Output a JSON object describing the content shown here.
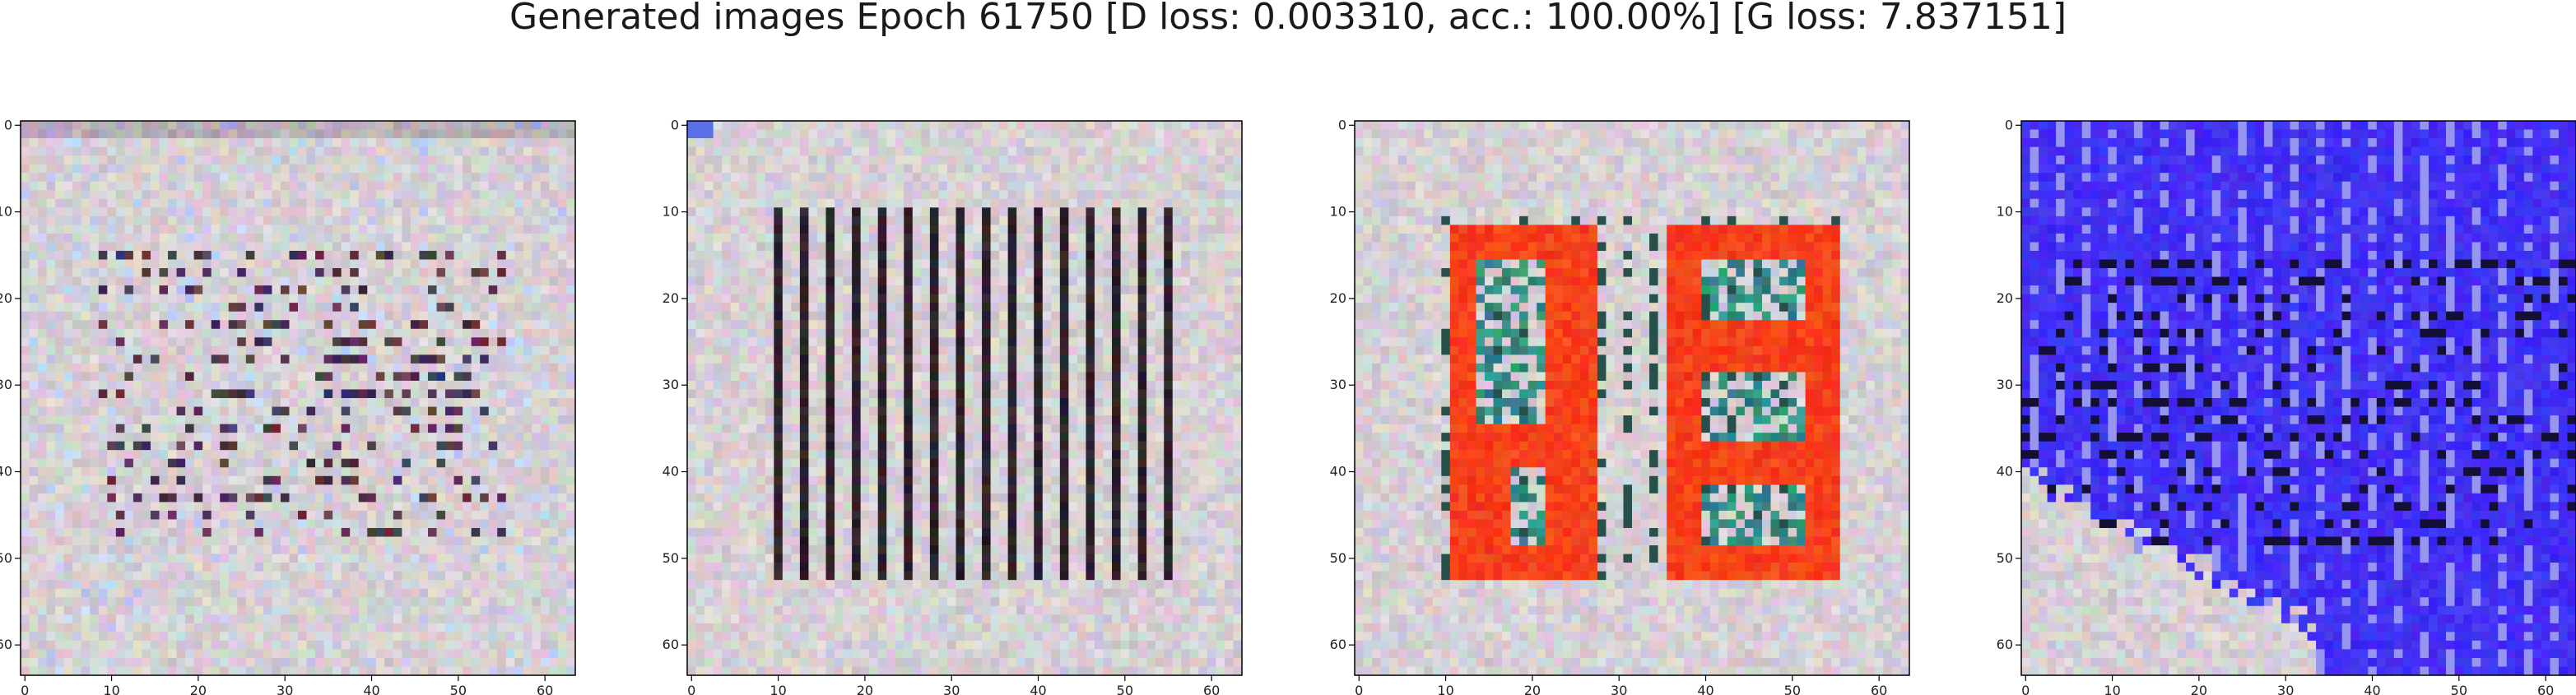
{
  "figure": {
    "title": "Generated images Epoch 61750 [D loss: 0.003310, acc.: 100.00%] [G loss: 7.837151]"
  },
  "chart_data": [
    {
      "type": "heatmap",
      "title": "",
      "xlabel": "",
      "ylabel": "",
      "xlim": [
        0,
        63
      ],
      "ylim": [
        63,
        0
      ],
      "xticks": [
        0,
        10,
        20,
        30,
        40,
        50,
        60
      ],
      "yticks": [
        0,
        10,
        20,
        30,
        40,
        50,
        60
      ],
      "content": "light-noise",
      "dominant_colors": [
        "#d7d1d4",
        "#e9e6ec",
        "#3a1f2a"
      ]
    },
    {
      "type": "heatmap",
      "title": "",
      "xlabel": "",
      "ylabel": "",
      "xlim": [
        0,
        63
      ],
      "ylim": [
        63,
        0
      ],
      "xticks": [
        0,
        10,
        20,
        30,
        40,
        50,
        60
      ],
      "yticks": [
        0,
        10,
        20,
        30,
        40,
        50,
        60
      ],
      "content": "vertical-bars",
      "dominant_colors": [
        "#d9d6d8",
        "#1b1418",
        "#ede9ee"
      ]
    },
    {
      "type": "heatmap",
      "title": "",
      "xlabel": "",
      "ylabel": "",
      "xlim": [
        0,
        63
      ],
      "ylim": [
        63,
        0
      ],
      "xticks": [
        0,
        10,
        20,
        30,
        40,
        50,
        60
      ],
      "yticks": [
        0,
        10,
        20,
        30,
        40,
        50,
        60
      ],
      "content": "red-digits",
      "dominant_colors": [
        "#d8d3d6",
        "#f23012",
        "#1f6f66"
      ]
    },
    {
      "type": "heatmap",
      "title": "",
      "xlabel": "",
      "ylabel": "",
      "xlim": [
        0,
        63
      ],
      "ylim": [
        63,
        0
      ],
      "xticks": [
        0,
        10,
        20,
        30,
        40,
        50,
        60
      ],
      "yticks": [
        0,
        10,
        20,
        30,
        40,
        50,
        60
      ],
      "content": "blue-field",
      "dominant_colors": [
        "#3a1ff0",
        "#e6e2ea",
        "#14103a"
      ]
    }
  ]
}
